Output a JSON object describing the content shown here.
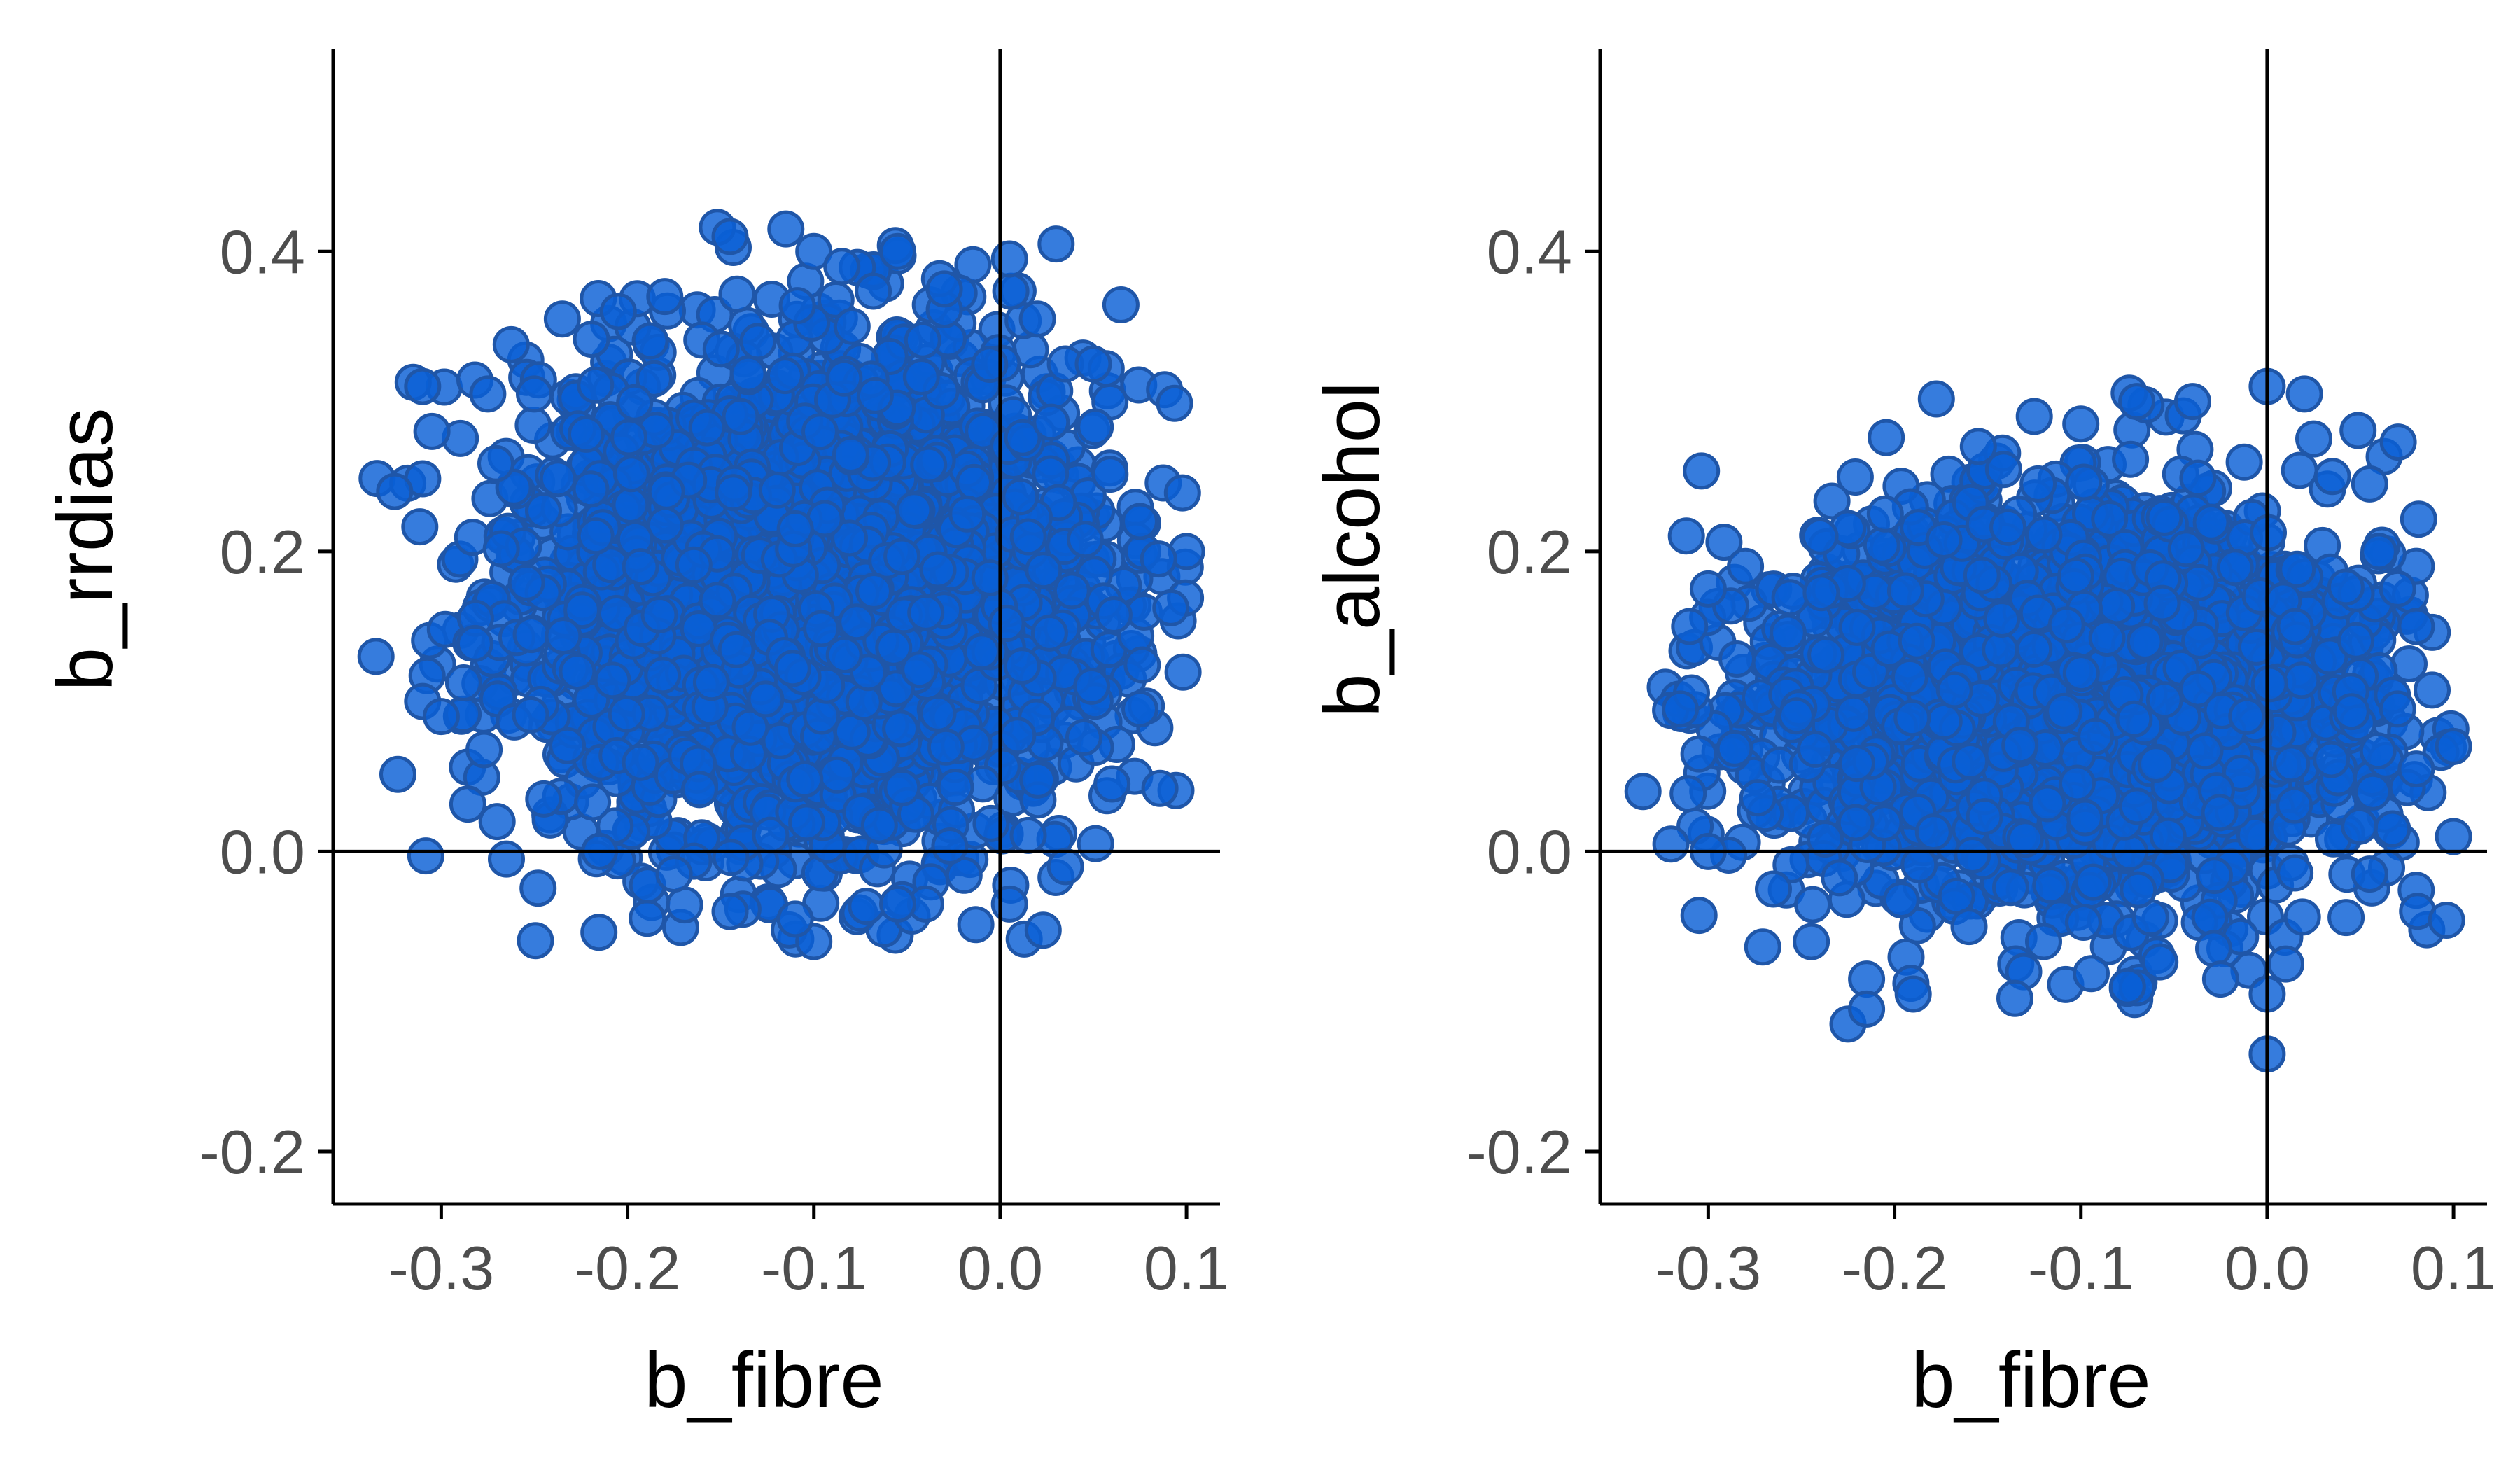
{
  "style": {
    "point_fill": "#0a5fd6",
    "point_stroke": "#1f56a8",
    "point_opacity": 0.82,
    "axis_color": "#000000",
    "tick_label_color": "#4d4d4d",
    "grid": false,
    "reference_lines": {
      "x": 0,
      "y": 0
    }
  },
  "chart_data": [
    {
      "type": "scatter",
      "xlabel": "b_fibre",
      "ylabel": "b_rrdias",
      "xlim": [
        -0.358,
        0.118
      ],
      "ylim": [
        -0.235,
        0.535
      ],
      "x_ticks": [
        -0.3,
        -0.2,
        -0.1,
        0.0,
        0.1
      ],
      "x_tick_labels": [
        "-0.3",
        "-0.2",
        "-0.1",
        "0.0",
        "0.1"
      ],
      "y_ticks": [
        -0.2,
        0.0,
        0.2,
        0.4
      ],
      "y_tick_labels": [
        "-0.2",
        "0.0",
        "0.2",
        "0.4"
      ],
      "cloud": {
        "center": [
          -0.1,
          0.17
        ],
        "sd": [
          0.08,
          0.085
        ],
        "x_range": [
          -0.335,
          0.1
        ],
        "y_range": [
          -0.06,
          0.42
        ]
      },
      "points": [
        [
          -0.335,
          0.13
        ],
        [
          -0.325,
          0.24
        ],
        [
          -0.31,
          0.31
        ],
        [
          -0.31,
          0.1
        ],
        [
          -0.3,
          0.09
        ],
        [
          -0.305,
          0.28
        ],
        [
          -0.275,
          0.305
        ],
        [
          -0.25,
          0.305
        ],
        [
          -0.265,
          -0.005
        ],
        [
          -0.27,
          0.02
        ],
        [
          -0.235,
          0.355
        ],
        [
          -0.205,
          0.36
        ],
        [
          -0.18,
          0.37
        ],
        [
          -0.145,
          0.41
        ],
        [
          -0.13,
          0.34
        ],
        [
          -0.115,
          0.415
        ],
        [
          -0.1,
          0.4
        ],
        [
          -0.085,
          0.39
        ],
        [
          -0.055,
          0.4
        ],
        [
          -0.03,
          0.375
        ],
        [
          0.005,
          0.395
        ],
        [
          0.03,
          0.405
        ],
        [
          0.02,
          0.355
        ],
        [
          0.035,
          0.325
        ],
        [
          0.05,
          0.325
        ],
        [
          0.075,
          0.22
        ],
        [
          0.1,
          0.2
        ],
        [
          0.085,
          0.195
        ],
        [
          0.075,
          0.095
        ],
        [
          0.06,
          0.045
        ],
        [
          0.035,
          -0.01
        ],
        [
          0.005,
          -0.035
        ],
        [
          -0.04,
          -0.035
        ],
        [
          -0.055,
          -0.035
        ],
        [
          -0.1,
          -0.06
        ],
        [
          -0.11,
          -0.045
        ],
        [
          -0.145,
          -0.04
        ],
        [
          -0.175,
          -0.015
        ],
        [
          -0.215,
          0.0
        ],
        [
          -0.245,
          0.035
        ]
      ]
    },
    {
      "type": "scatter",
      "xlabel": "b_fibre",
      "ylabel": "b_alcohol",
      "xlim": [
        -0.358,
        0.118
      ],
      "ylim": [
        -0.235,
        0.535
      ],
      "x_ticks": [
        -0.3,
        -0.2,
        -0.1,
        0.0,
        0.1
      ],
      "x_tick_labels": [
        "-0.3",
        "-0.2",
        "-0.1",
        "0.0",
        "0.1"
      ],
      "y_ticks": [
        -0.2,
        0.0,
        0.2,
        0.4
      ],
      "y_tick_labels": [
        "-0.2",
        "0.0",
        "0.2",
        "0.4"
      ],
      "cloud": {
        "center": [
          -0.1,
          0.1
        ],
        "sd": [
          0.08,
          0.065
        ],
        "x_range": [
          -0.335,
          0.1
        ],
        "y_range": [
          -0.13,
          0.31
        ]
      },
      "points": [
        [
          -0.335,
          0.04
        ],
        [
          -0.32,
          0.005
        ],
        [
          -0.31,
          0.15
        ],
        [
          -0.3,
          0.175
        ],
        [
          -0.315,
          0.095
        ],
        [
          -0.305,
          0.065
        ],
        [
          -0.3,
          0.0
        ],
        [
          -0.28,
          0.19
        ],
        [
          -0.24,
          0.21
        ],
        [
          -0.205,
          0.225
        ],
        [
          -0.155,
          0.27
        ],
        [
          -0.125,
          0.29
        ],
        [
          -0.1,
          0.285
        ],
        [
          -0.07,
          0.3
        ],
        [
          -0.04,
          0.3
        ],
        [
          0.0,
          0.31
        ],
        [
          0.02,
          0.305
        ],
        [
          0.025,
          0.275
        ],
        [
          0.035,
          0.25
        ],
        [
          0.055,
          0.245
        ],
        [
          0.06,
          0.2
        ],
        [
          0.07,
          0.175
        ],
        [
          0.08,
          0.15
        ],
        [
          0.07,
          0.095
        ],
        [
          0.1,
          0.07
        ],
        [
          0.1,
          0.01
        ],
        [
          0.08,
          0.055
        ],
        [
          0.055,
          -0.015
        ],
        [
          0.01,
          -0.075
        ],
        [
          0.0,
          -0.095
        ],
        [
          0.0,
          -0.135
        ],
        [
          -0.025,
          -0.085
        ],
        [
          -0.075,
          -0.09
        ],
        [
          -0.12,
          -0.06
        ],
        [
          -0.16,
          -0.05
        ],
        [
          -0.19,
          -0.095
        ],
        [
          -0.215,
          -0.085
        ],
        [
          -0.225,
          -0.115
        ],
        [
          -0.215,
          -0.105
        ],
        [
          -0.265,
          -0.025
        ]
      ]
    }
  ]
}
